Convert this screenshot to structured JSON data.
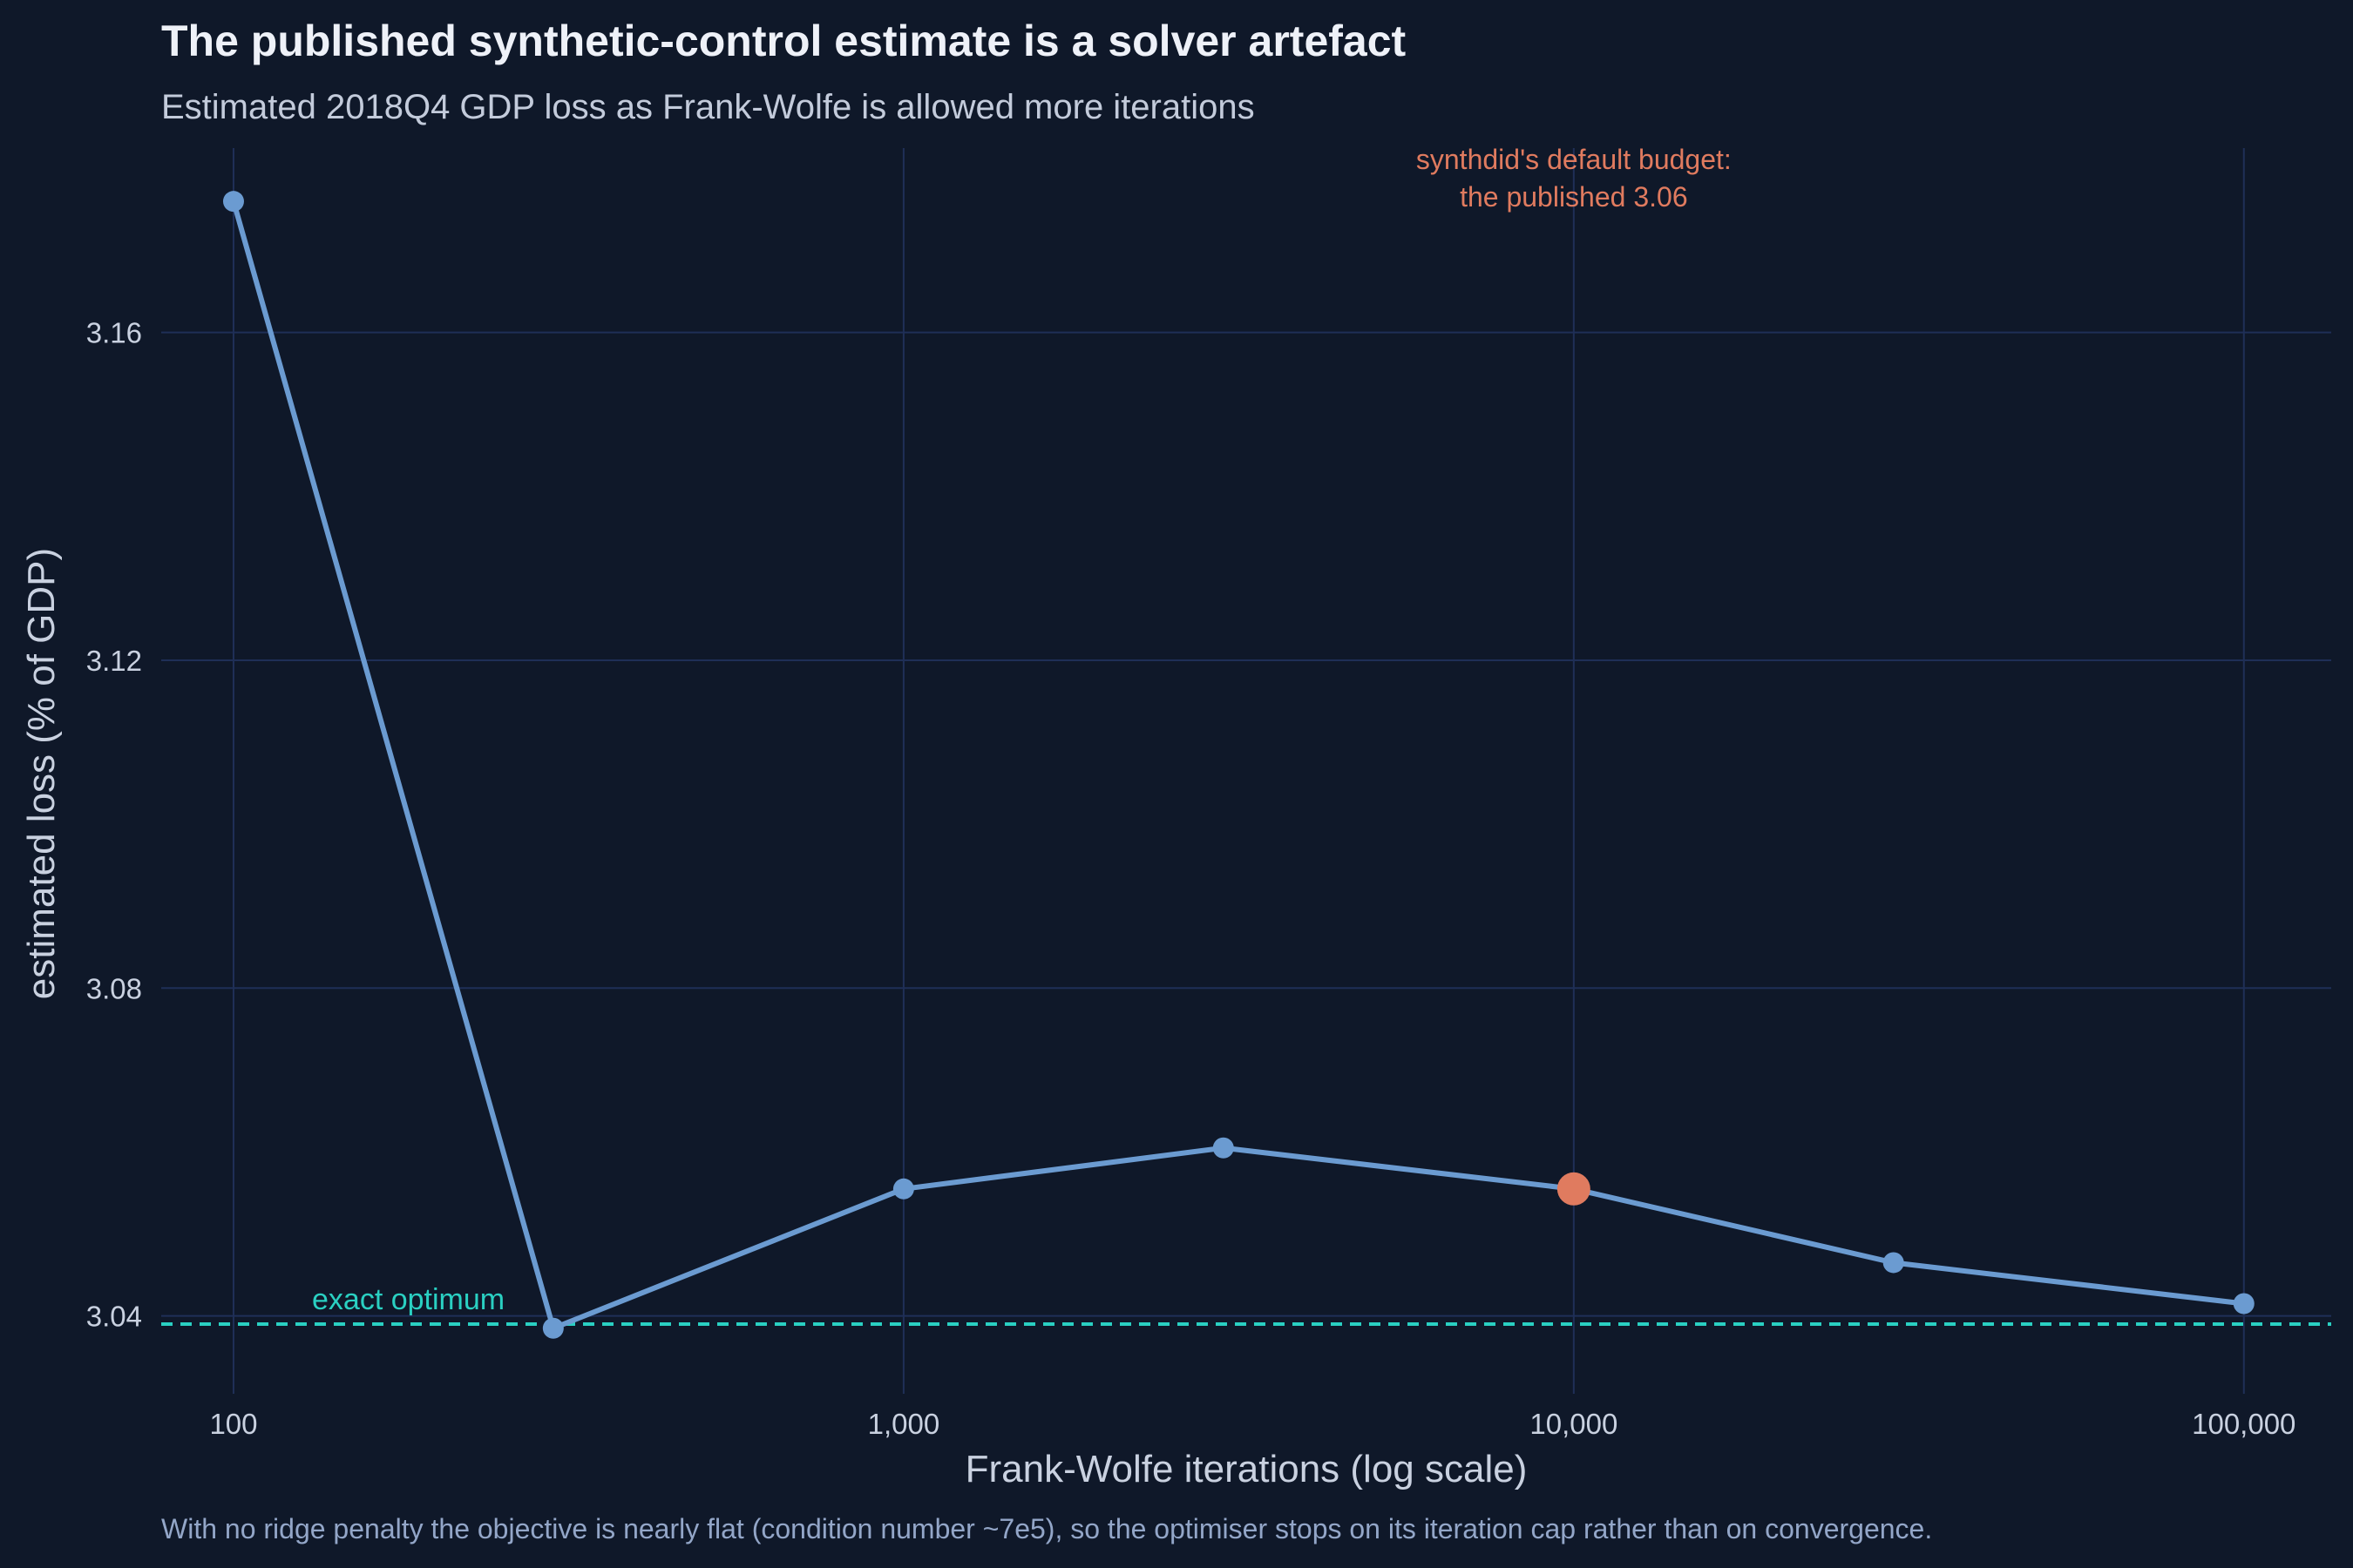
{
  "title": "The published synthetic-control estimate is a solver artefact",
  "subtitle": "Estimated 2018Q4 GDP loss as Frank-Wolfe is allowed more iterations",
  "caption": "With no ridge penalty the objective is nearly flat (condition number ~7e5), so the optimiser stops on its iteration cap rather than on convergence.",
  "chart_data": {
    "type": "line",
    "x_scale": "log",
    "xlabel": "Frank-Wolfe iterations (log scale)",
    "ylabel": "estimated loss (% of GDP)",
    "x_ticks": [
      100,
      1000,
      10000,
      100000
    ],
    "x_tick_labels": [
      "100",
      "1,000",
      "10,000",
      "100,000"
    ],
    "y_ticks": [
      3.04,
      3.08,
      3.12,
      3.16
    ],
    "y_tick_labels": [
      "3.04",
      "3.08",
      "3.12",
      "3.16"
    ],
    "xlim": [
      78,
      135000
    ],
    "ylim": [
      3.0305,
      3.1825
    ],
    "grid": true,
    "series": [
      {
        "x": [
          100,
          300,
          1000,
          3000,
          10000,
          30000,
          100000
        ],
        "y": [
          3.176,
          3.0385,
          3.0555,
          3.0605,
          3.0555,
          3.0465,
          3.0415
        ],
        "color": "#6b9bd1"
      }
    ],
    "highlight": {
      "x": 10000,
      "y": 3.0555,
      "color": "#e07b5f"
    },
    "reference_line": {
      "y": 3.039,
      "label": "exact optimum",
      "color": "#2ad0c2",
      "style": "dashed"
    },
    "annotation": {
      "lines": [
        "synthdid's default budget:",
        "the published 3.06"
      ],
      "x": 10000,
      "color": "#e07b5f"
    }
  }
}
